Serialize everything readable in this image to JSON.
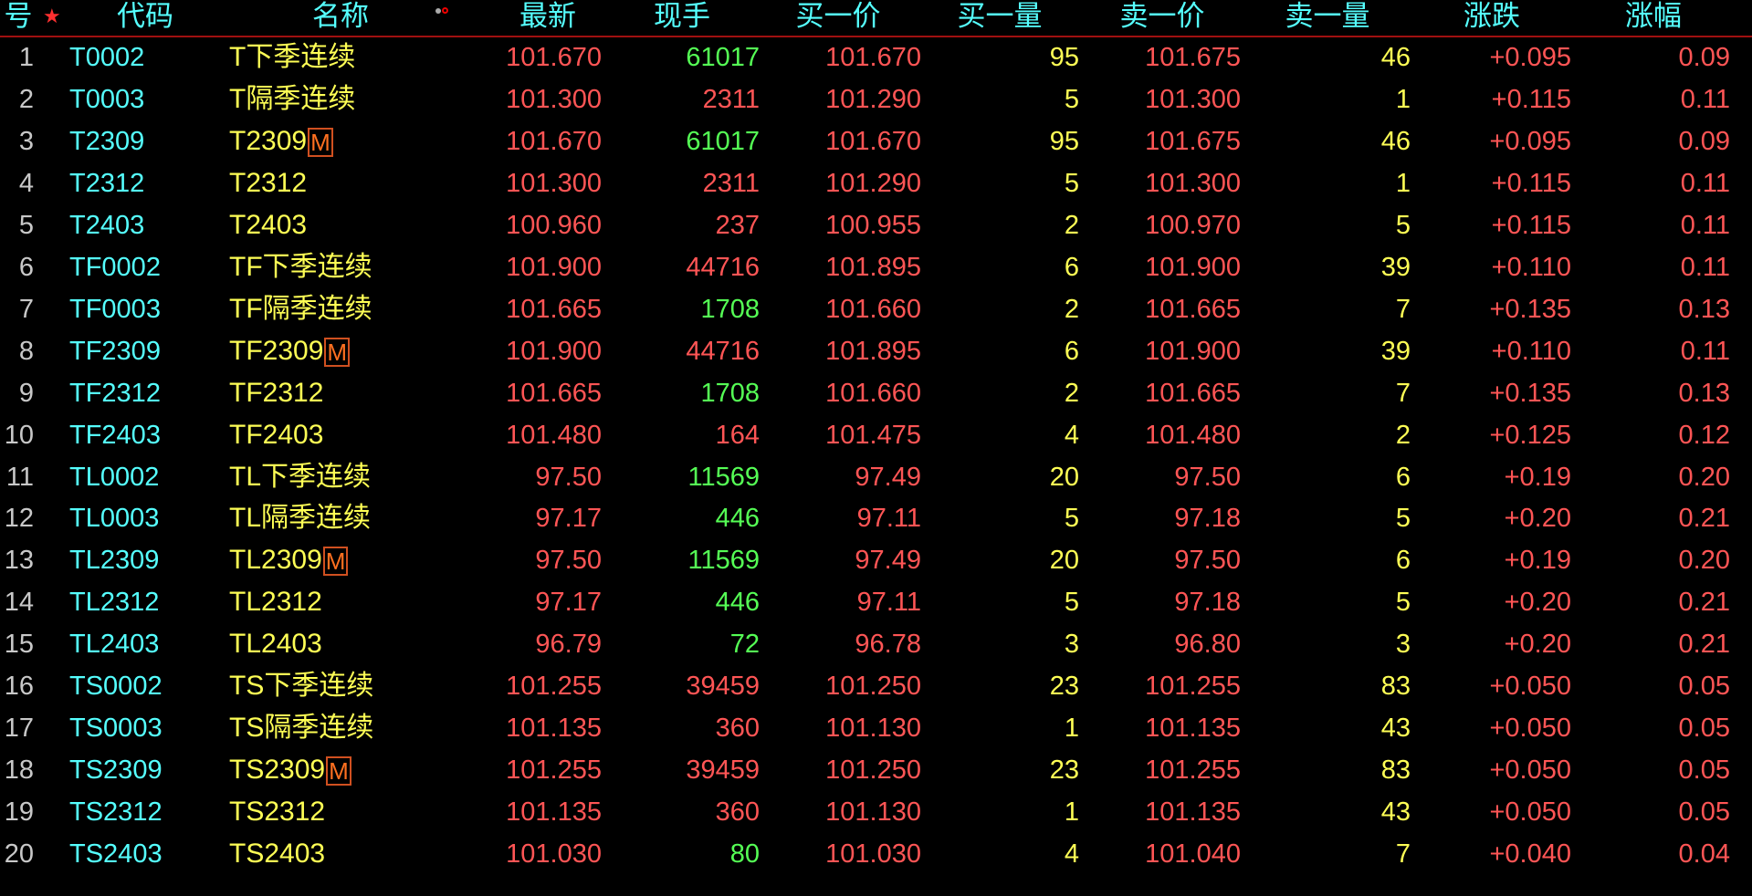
{
  "colors": {
    "up": "#ff5555",
    "down_volume": "#55ff55",
    "code": "#55ffff",
    "name": "#ffff55",
    "header": "#55ffff"
  },
  "header": {
    "index": "号",
    "code": "代码",
    "name": "名称",
    "last": "最新",
    "volume": "现手",
    "bid": "买一价",
    "bid_qty": "买一量",
    "ask": "卖一价",
    "ask_qty": "卖一量",
    "change": "涨跌",
    "pct": "涨幅"
  },
  "main_contract_badge": "M",
  "rows": [
    {
      "index": "1",
      "code": "T0002",
      "name": "T下季连续",
      "main": false,
      "last": "101.670",
      "volume": "61017",
      "volume_color": "green",
      "bid": "101.670",
      "bid_qty": "95",
      "ask": "101.675",
      "ask_qty": "46",
      "change": "+0.095",
      "pct": "0.09"
    },
    {
      "index": "2",
      "code": "T0003",
      "name": "T隔季连续",
      "main": false,
      "last": "101.300",
      "volume": "2311",
      "volume_color": "red",
      "bid": "101.290",
      "bid_qty": "5",
      "ask": "101.300",
      "ask_qty": "1",
      "change": "+0.115",
      "pct": "0.11"
    },
    {
      "index": "3",
      "code": "T2309",
      "name": "T2309",
      "main": true,
      "last": "101.670",
      "volume": "61017",
      "volume_color": "green",
      "bid": "101.670",
      "bid_qty": "95",
      "ask": "101.675",
      "ask_qty": "46",
      "change": "+0.095",
      "pct": "0.09"
    },
    {
      "index": "4",
      "code": "T2312",
      "name": "T2312",
      "main": false,
      "last": "101.300",
      "volume": "2311",
      "volume_color": "red",
      "bid": "101.290",
      "bid_qty": "5",
      "ask": "101.300",
      "ask_qty": "1",
      "change": "+0.115",
      "pct": "0.11"
    },
    {
      "index": "5",
      "code": "T2403",
      "name": "T2403",
      "main": false,
      "last": "100.960",
      "volume": "237",
      "volume_color": "red",
      "bid": "100.955",
      "bid_qty": "2",
      "ask": "100.970",
      "ask_qty": "5",
      "change": "+0.115",
      "pct": "0.11"
    },
    {
      "index": "6",
      "code": "TF0002",
      "name": "TF下季连续",
      "main": false,
      "last": "101.900",
      "volume": "44716",
      "volume_color": "red",
      "bid": "101.895",
      "bid_qty": "6",
      "ask": "101.900",
      "ask_qty": "39",
      "change": "+0.110",
      "pct": "0.11"
    },
    {
      "index": "7",
      "code": "TF0003",
      "name": "TF隔季连续",
      "main": false,
      "last": "101.665",
      "volume": "1708",
      "volume_color": "green",
      "bid": "101.660",
      "bid_qty": "2",
      "ask": "101.665",
      "ask_qty": "7",
      "change": "+0.135",
      "pct": "0.13"
    },
    {
      "index": "8",
      "code": "TF2309",
      "name": "TF2309",
      "main": true,
      "last": "101.900",
      "volume": "44716",
      "volume_color": "red",
      "bid": "101.895",
      "bid_qty": "6",
      "ask": "101.900",
      "ask_qty": "39",
      "change": "+0.110",
      "pct": "0.11"
    },
    {
      "index": "9",
      "code": "TF2312",
      "name": "TF2312",
      "main": false,
      "last": "101.665",
      "volume": "1708",
      "volume_color": "green",
      "bid": "101.660",
      "bid_qty": "2",
      "ask": "101.665",
      "ask_qty": "7",
      "change": "+0.135",
      "pct": "0.13"
    },
    {
      "index": "10",
      "code": "TF2403",
      "name": "TF2403",
      "main": false,
      "last": "101.480",
      "volume": "164",
      "volume_color": "red",
      "bid": "101.475",
      "bid_qty": "4",
      "ask": "101.480",
      "ask_qty": "2",
      "change": "+0.125",
      "pct": "0.12"
    },
    {
      "index": "11",
      "code": "TL0002",
      "name": "TL下季连续",
      "main": false,
      "last": "97.50",
      "volume": "11569",
      "volume_color": "green",
      "bid": "97.49",
      "bid_qty": "20",
      "ask": "97.50",
      "ask_qty": "6",
      "change": "+0.19",
      "pct": "0.20"
    },
    {
      "index": "12",
      "code": "TL0003",
      "name": "TL隔季连续",
      "main": false,
      "last": "97.17",
      "volume": "446",
      "volume_color": "green",
      "bid": "97.11",
      "bid_qty": "5",
      "ask": "97.18",
      "ask_qty": "5",
      "change": "+0.20",
      "pct": "0.21"
    },
    {
      "index": "13",
      "code": "TL2309",
      "name": "TL2309",
      "main": true,
      "last": "97.50",
      "volume": "11569",
      "volume_color": "green",
      "bid": "97.49",
      "bid_qty": "20",
      "ask": "97.50",
      "ask_qty": "6",
      "change": "+0.19",
      "pct": "0.20"
    },
    {
      "index": "14",
      "code": "TL2312",
      "name": "TL2312",
      "main": false,
      "last": "97.17",
      "volume": "446",
      "volume_color": "green",
      "bid": "97.11",
      "bid_qty": "5",
      "ask": "97.18",
      "ask_qty": "5",
      "change": "+0.20",
      "pct": "0.21"
    },
    {
      "index": "15",
      "code": "TL2403",
      "name": "TL2403",
      "main": false,
      "last": "96.79",
      "volume": "72",
      "volume_color": "green",
      "bid": "96.78",
      "bid_qty": "3",
      "ask": "96.80",
      "ask_qty": "3",
      "change": "+0.20",
      "pct": "0.21"
    },
    {
      "index": "16",
      "code": "TS0002",
      "name": "TS下季连续",
      "main": false,
      "last": "101.255",
      "volume": "39459",
      "volume_color": "red",
      "bid": "101.250",
      "bid_qty": "23",
      "ask": "101.255",
      "ask_qty": "83",
      "change": "+0.050",
      "pct": "0.05"
    },
    {
      "index": "17",
      "code": "TS0003",
      "name": "TS隔季连续",
      "main": false,
      "last": "101.135",
      "volume": "360",
      "volume_color": "red",
      "bid": "101.130",
      "bid_qty": "1",
      "ask": "101.135",
      "ask_qty": "43",
      "change": "+0.050",
      "pct": "0.05"
    },
    {
      "index": "18",
      "code": "TS2309",
      "name": "TS2309",
      "main": true,
      "last": "101.255",
      "volume": "39459",
      "volume_color": "red",
      "bid": "101.250",
      "bid_qty": "23",
      "ask": "101.255",
      "ask_qty": "83",
      "change": "+0.050",
      "pct": "0.05"
    },
    {
      "index": "19",
      "code": "TS2312",
      "name": "TS2312",
      "main": false,
      "last": "101.135",
      "volume": "360",
      "volume_color": "red",
      "bid": "101.130",
      "bid_qty": "1",
      "ask": "101.135",
      "ask_qty": "43",
      "change": "+0.050",
      "pct": "0.05"
    },
    {
      "index": "20",
      "code": "TS2403",
      "name": "TS2403",
      "main": false,
      "last": "101.030",
      "volume": "80",
      "volume_color": "green",
      "bid": "101.030",
      "bid_qty": "4",
      "ask": "101.040",
      "ask_qty": "7",
      "change": "+0.040",
      "pct": "0.04"
    }
  ]
}
